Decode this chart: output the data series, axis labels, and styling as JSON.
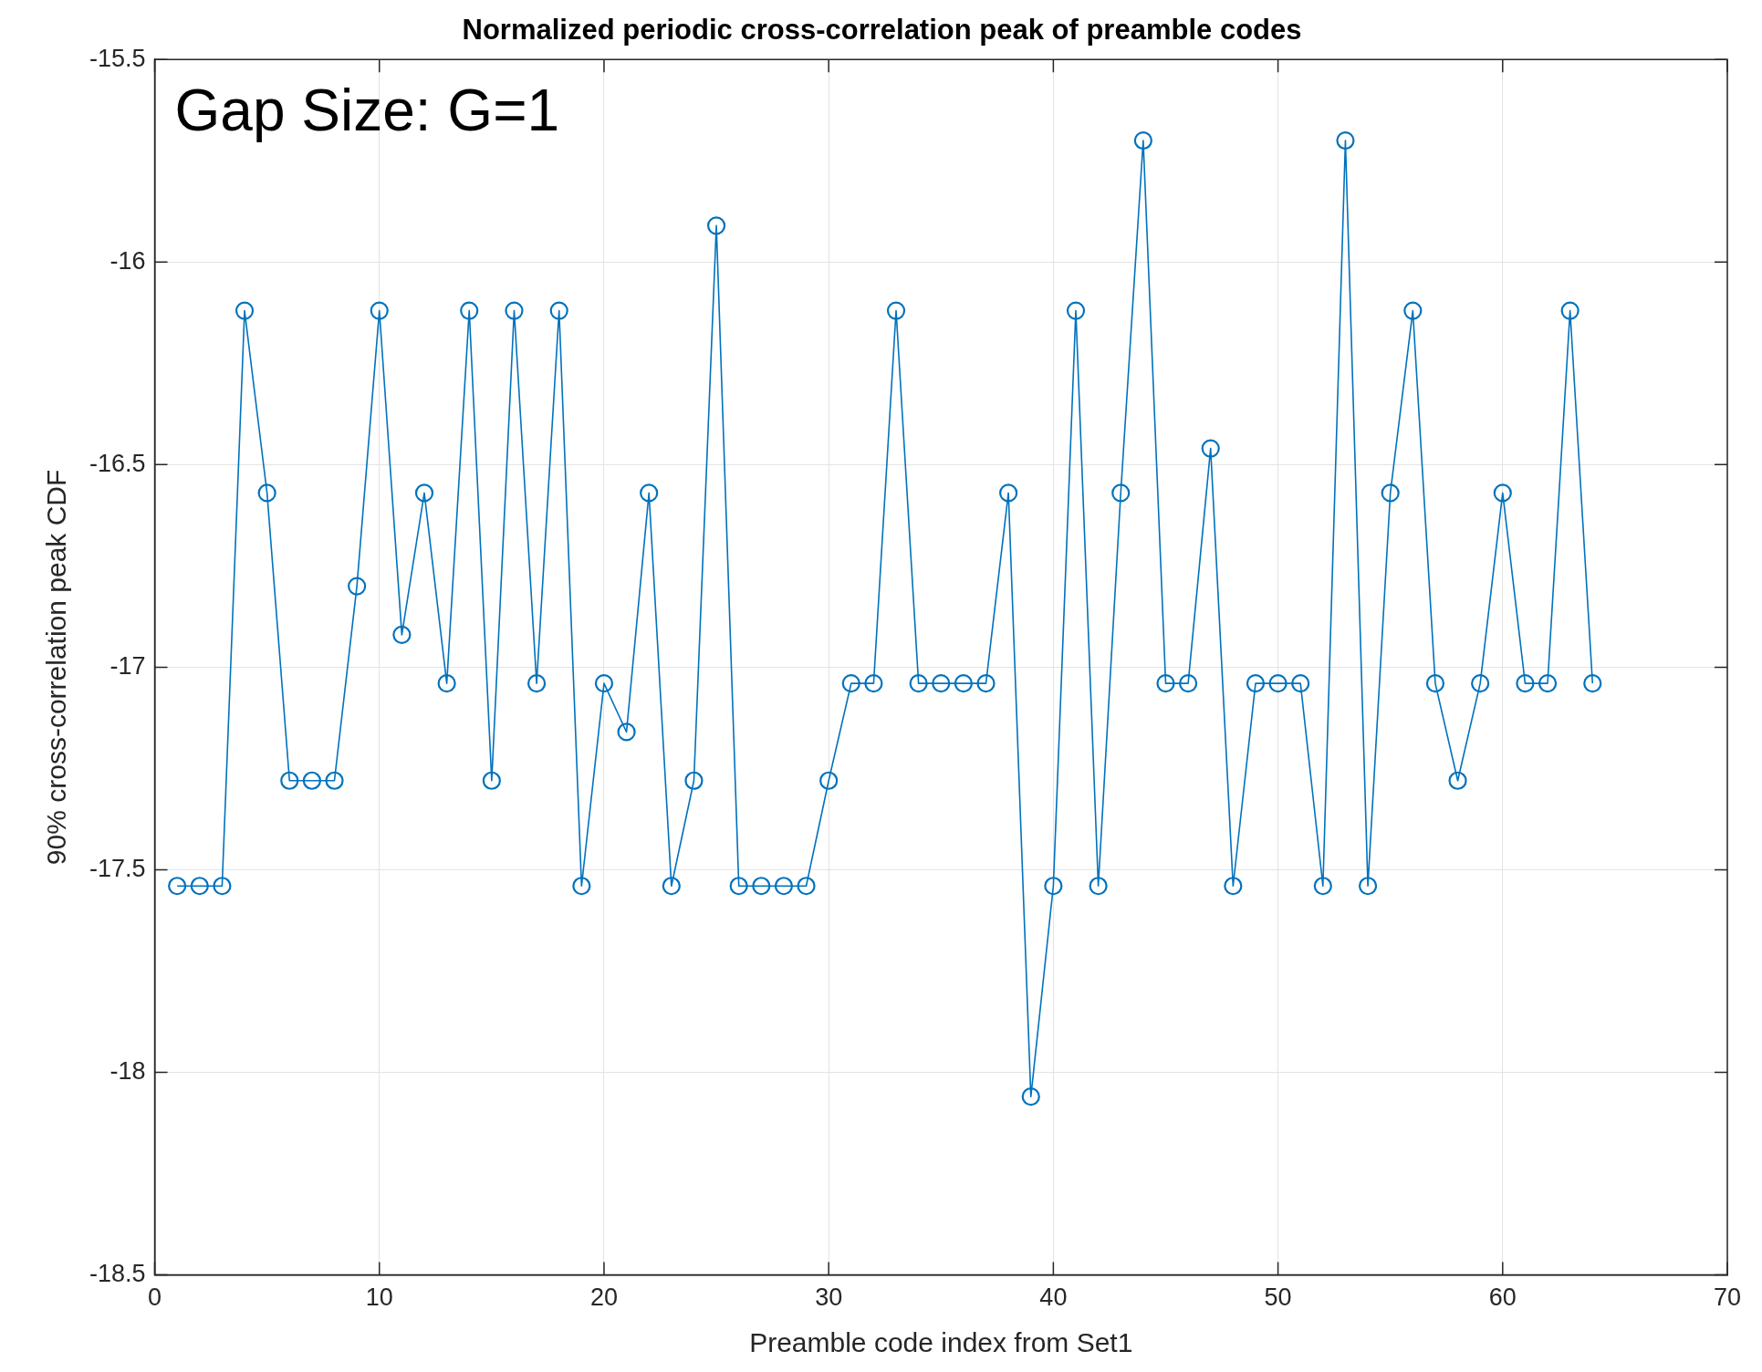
{
  "chart_data": {
    "type": "line",
    "title": "Normalized periodic cross-correlation peak of preamble codes",
    "xlabel": "Preamble code index from Set1",
    "ylabel": "90% cross-correlation peak CDF",
    "annotations": [
      "Gap Size: G=1"
    ],
    "x": [
      1,
      2,
      3,
      4,
      5,
      6,
      7,
      8,
      9,
      10,
      11,
      12,
      13,
      14,
      15,
      16,
      17,
      18,
      19,
      20,
      21,
      22,
      23,
      24,
      25,
      26,
      27,
      28,
      29,
      30,
      31,
      32,
      33,
      34,
      35,
      36,
      37,
      38,
      39,
      40,
      41,
      42,
      43,
      44,
      45,
      46,
      47,
      48,
      49,
      50,
      51,
      52,
      53,
      54,
      55,
      56,
      57,
      58,
      59,
      60,
      61,
      62,
      63,
      64
    ],
    "series": [
      {
        "color": "#0072bd",
        "values": [
          -17.54,
          -17.54,
          -17.54,
          -16.12,
          -16.57,
          -17.28,
          -17.28,
          -17.28,
          -16.8,
          -16.12,
          -16.92,
          -16.57,
          -17.04,
          -16.12,
          -17.28,
          -16.12,
          -17.04,
          -16.12,
          -17.54,
          -17.04,
          -17.16,
          -16.57,
          -17.54,
          -17.28,
          -15.91,
          -17.54,
          -17.54,
          -17.54,
          -17.54,
          -17.28,
          -17.04,
          -17.04,
          -16.12,
          -17.04,
          -17.04,
          -17.04,
          -17.04,
          -16.57,
          -18.06,
          -17.54,
          -16.12,
          -17.54,
          -16.57,
          -15.7,
          -17.04,
          -17.04,
          -16.46,
          -17.54,
          -17.04,
          -17.04,
          -17.04,
          -17.54,
          -15.7,
          -17.54,
          -16.57,
          -16.12,
          -17.04,
          -17.28,
          -17.04,
          -16.57,
          -17.04,
          -17.04,
          -16.12,
          -17.04
        ]
      }
    ],
    "xlim": [
      0,
      70
    ],
    "xticks": [
      0,
      10,
      20,
      30,
      40,
      50,
      60,
      70
    ],
    "ylim": [
      -18.5,
      -15.5
    ],
    "yticks": [
      -18.5,
      -18,
      -17.5,
      -17,
      -16.5,
      -16,
      -15.5
    ],
    "grid": true,
    "marker": "circle",
    "line_style": "solid",
    "legend": false
  }
}
